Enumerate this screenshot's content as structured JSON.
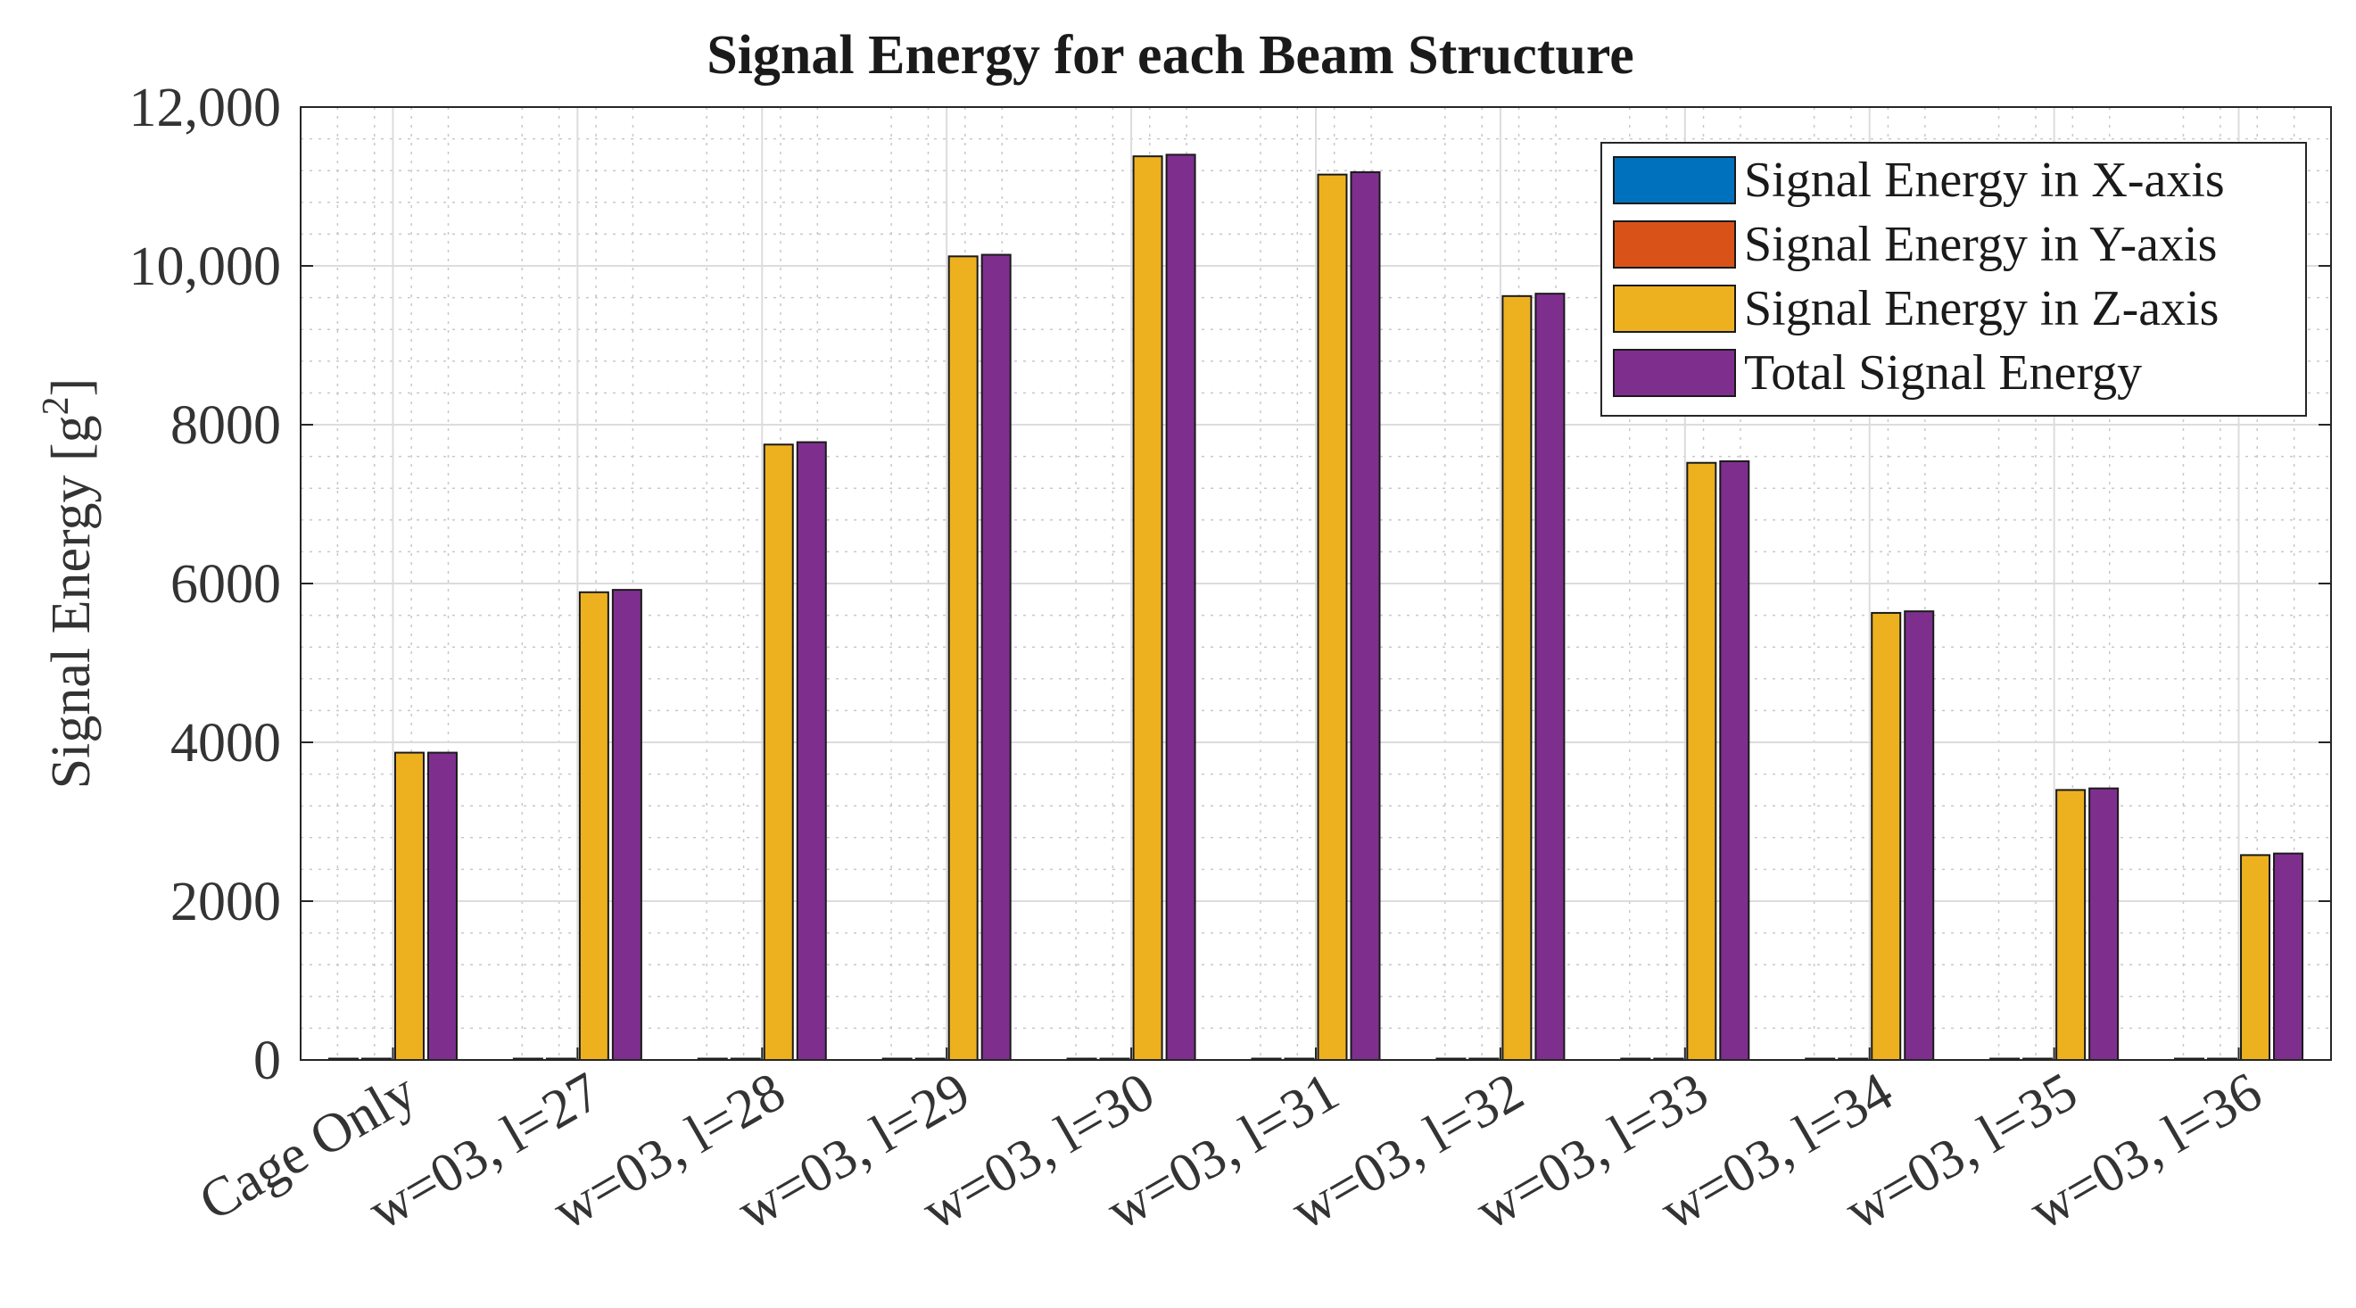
{
  "chart_data": {
    "type": "bar",
    "title": "Signal Energy for each Beam Structure",
    "xlabel": "",
    "ylabel": "Signal Energy [g",
    "ylabel_superscript": "2",
    "ylabel_close": "]",
    "ylim": [
      0,
      12000
    ],
    "yticks": [
      0,
      2000,
      4000,
      6000,
      8000,
      10000,
      12000
    ],
    "ytick_labels": [
      "0",
      "2000",
      "4000",
      "6000",
      "8000",
      "10,000",
      "12,000"
    ],
    "grid": true,
    "legend_position": "top-right",
    "categories": [
      "Cage Only",
      "w=03, l=27",
      "w=03, l=28",
      "w=03, l=29",
      "w=03, l=30",
      "w=03, l=31",
      "w=03, l=32",
      "w=03, l=33",
      "w=03, l=34",
      "w=03, l=35",
      "w=03, l=36"
    ],
    "series": [
      {
        "name": "Signal Energy in X-axis",
        "color": "#0072BD",
        "values": [
          2,
          8,
          3,
          3,
          3,
          3,
          3,
          3,
          3,
          3,
          3
        ]
      },
      {
        "name": "Signal Energy in Y-axis",
        "color": "#D95319",
        "values": [
          2,
          12,
          3,
          3,
          3,
          3,
          3,
          3,
          3,
          3,
          3
        ]
      },
      {
        "name": "Signal Energy in Z-axis",
        "color": "#EDB120",
        "values": [
          3870,
          5890,
          7750,
          10120,
          11380,
          11150,
          9620,
          7520,
          5630,
          3400,
          2580
        ]
      },
      {
        "name": "Total Signal Energy",
        "color": "#7E2F8E",
        "values": [
          3870,
          5920,
          7780,
          10140,
          11400,
          11180,
          9650,
          7540,
          5650,
          3420,
          2600
        ]
      }
    ]
  }
}
